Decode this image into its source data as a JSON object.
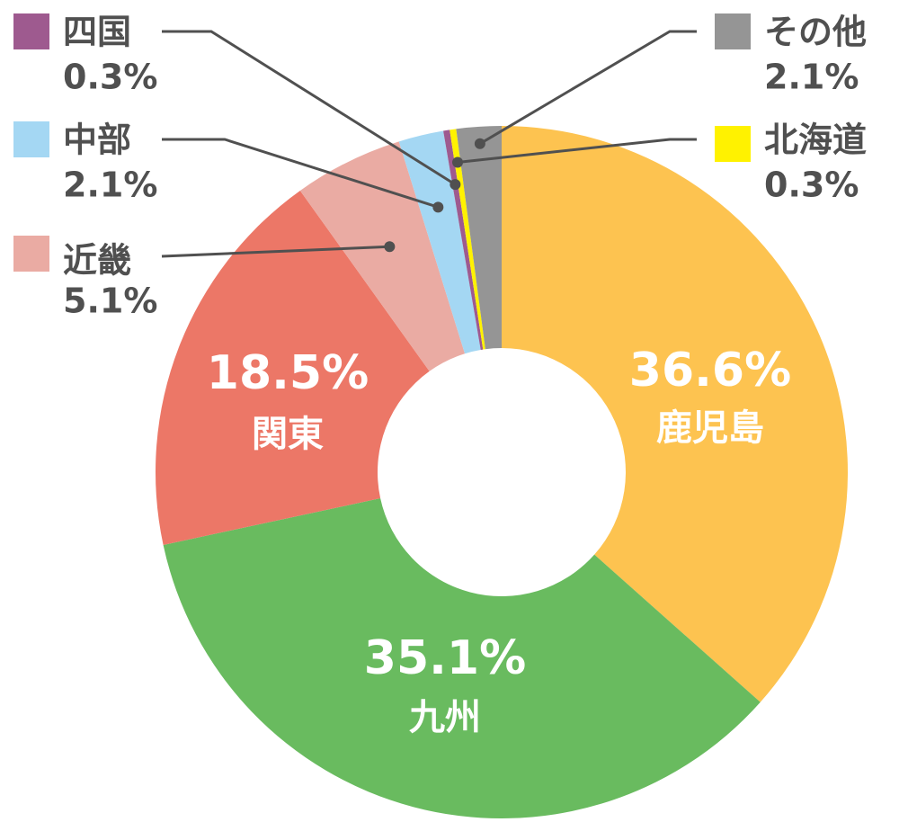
{
  "chart_data": {
    "type": "donut",
    "categories": [
      "鹿児島",
      "九州",
      "関東",
      "近畿",
      "中部",
      "四国",
      "北海道",
      "その他"
    ],
    "values": [
      36.6,
      35.1,
      18.5,
      5.1,
      2.1,
      0.3,
      0.3,
      2.1
    ],
    "value_labels": [
      "36.6%",
      "35.1%",
      "18.5%",
      "5.1%",
      "2.1%",
      "0.3%",
      "0.3%",
      "2.1%"
    ],
    "colors": [
      "#fdc350",
      "#69bb5f",
      "#ec7767",
      "#eaaba3",
      "#a4d7f3",
      "#9e5a8f",
      "#fff200",
      "#959595"
    ]
  }
}
